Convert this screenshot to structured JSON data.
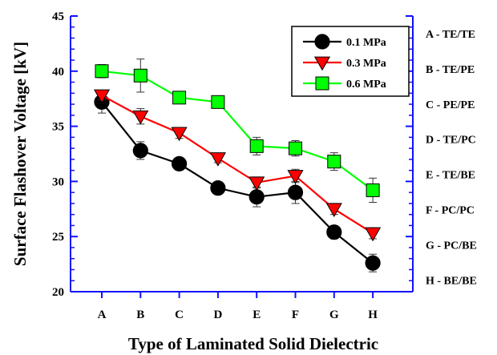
{
  "chart_data": {
    "type": "line",
    "xlabel": "Type of Laminated Solid Dielectric",
    "ylabel": "Surface Flashover Voltage [kV]",
    "ylim": [
      20,
      45
    ],
    "yticks": [
      20,
      25,
      30,
      35,
      40,
      45
    ],
    "categories": [
      "A",
      "B",
      "C",
      "D",
      "E",
      "F",
      "G",
      "H"
    ],
    "legend_position": "top-right",
    "grid": false,
    "series": [
      {
        "name": "0.1 MPa",
        "color": "#000000",
        "marker": "circle",
        "values": [
          37.2,
          32.8,
          31.6,
          29.4,
          28.6,
          29.0,
          25.4,
          22.6
        ],
        "errors": [
          1.0,
          0.8,
          0.5,
          0.5,
          0.9,
          1.0,
          0.6,
          0.8
        ]
      },
      {
        "name": "0.3 MPa",
        "color": "#ff0000",
        "marker": "triangle-down",
        "values": [
          37.8,
          35.9,
          34.4,
          32.1,
          29.9,
          30.5,
          27.5,
          25.3
        ],
        "errors": [
          0.4,
          0.7,
          0.5,
          0.4,
          0.5,
          0.6,
          0.5,
          0.5
        ]
      },
      {
        "name": "0.6 MPa",
        "color": "#00ff00",
        "marker": "square",
        "values": [
          40.0,
          39.6,
          37.6,
          37.2,
          33.2,
          33.0,
          31.8,
          29.2
        ],
        "errors": [
          0.6,
          1.5,
          0.4,
          0.4,
          0.8,
          0.7,
          0.8,
          1.1
        ]
      }
    ],
    "side_labels": [
      "A - TE/TE",
      "B - TE/PE",
      "C - PE/PE",
      "D - TE/PC",
      "E - TE/BE",
      "F - PC/PC",
      "G - PC/BE",
      "H - BE/BE"
    ]
  }
}
